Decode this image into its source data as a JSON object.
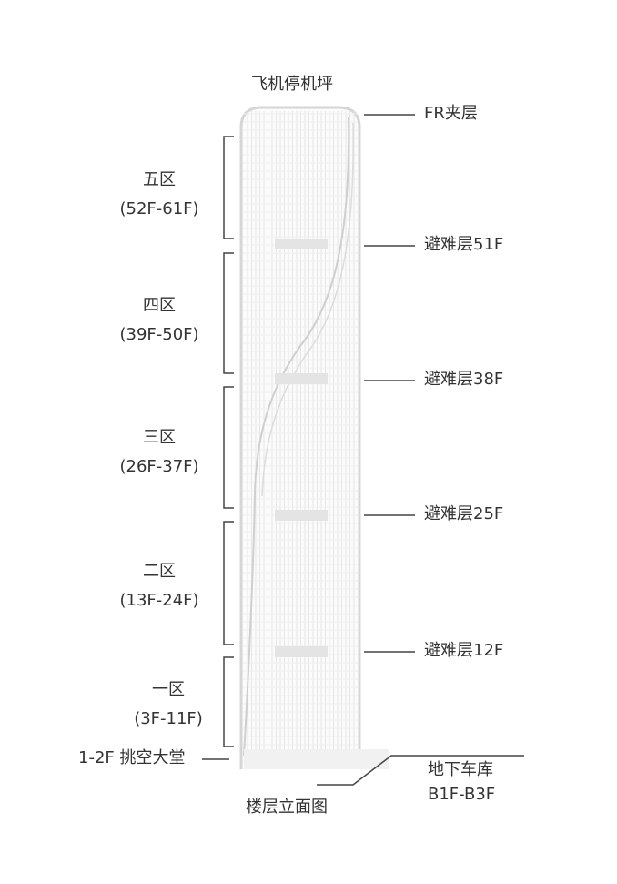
{
  "title_top": "飞机停机坪",
  "caption": "楼层立面图",
  "zones": [
    {
      "name": "五区",
      "range": "(52F-61F)"
    },
    {
      "name": "四区",
      "range": "(39F-50F)"
    },
    {
      "name": "三区",
      "range": "(26F-37F)"
    },
    {
      "name": "二区",
      "range": "(13F-24F)"
    },
    {
      "name": "一区",
      "range": "(3F-11F)"
    }
  ],
  "right_labels": [
    "FR夹层",
    "避难层51F",
    "避难层38F",
    "避难层25F",
    "避难层12F"
  ],
  "lobby_label": "1-2F 挑空大堂",
  "garage": {
    "name": "地下车库",
    "range": "B1F-B3F"
  },
  "colors": {
    "text": "#333333",
    "line": "#444444",
    "tower": "#d6d6d6"
  }
}
